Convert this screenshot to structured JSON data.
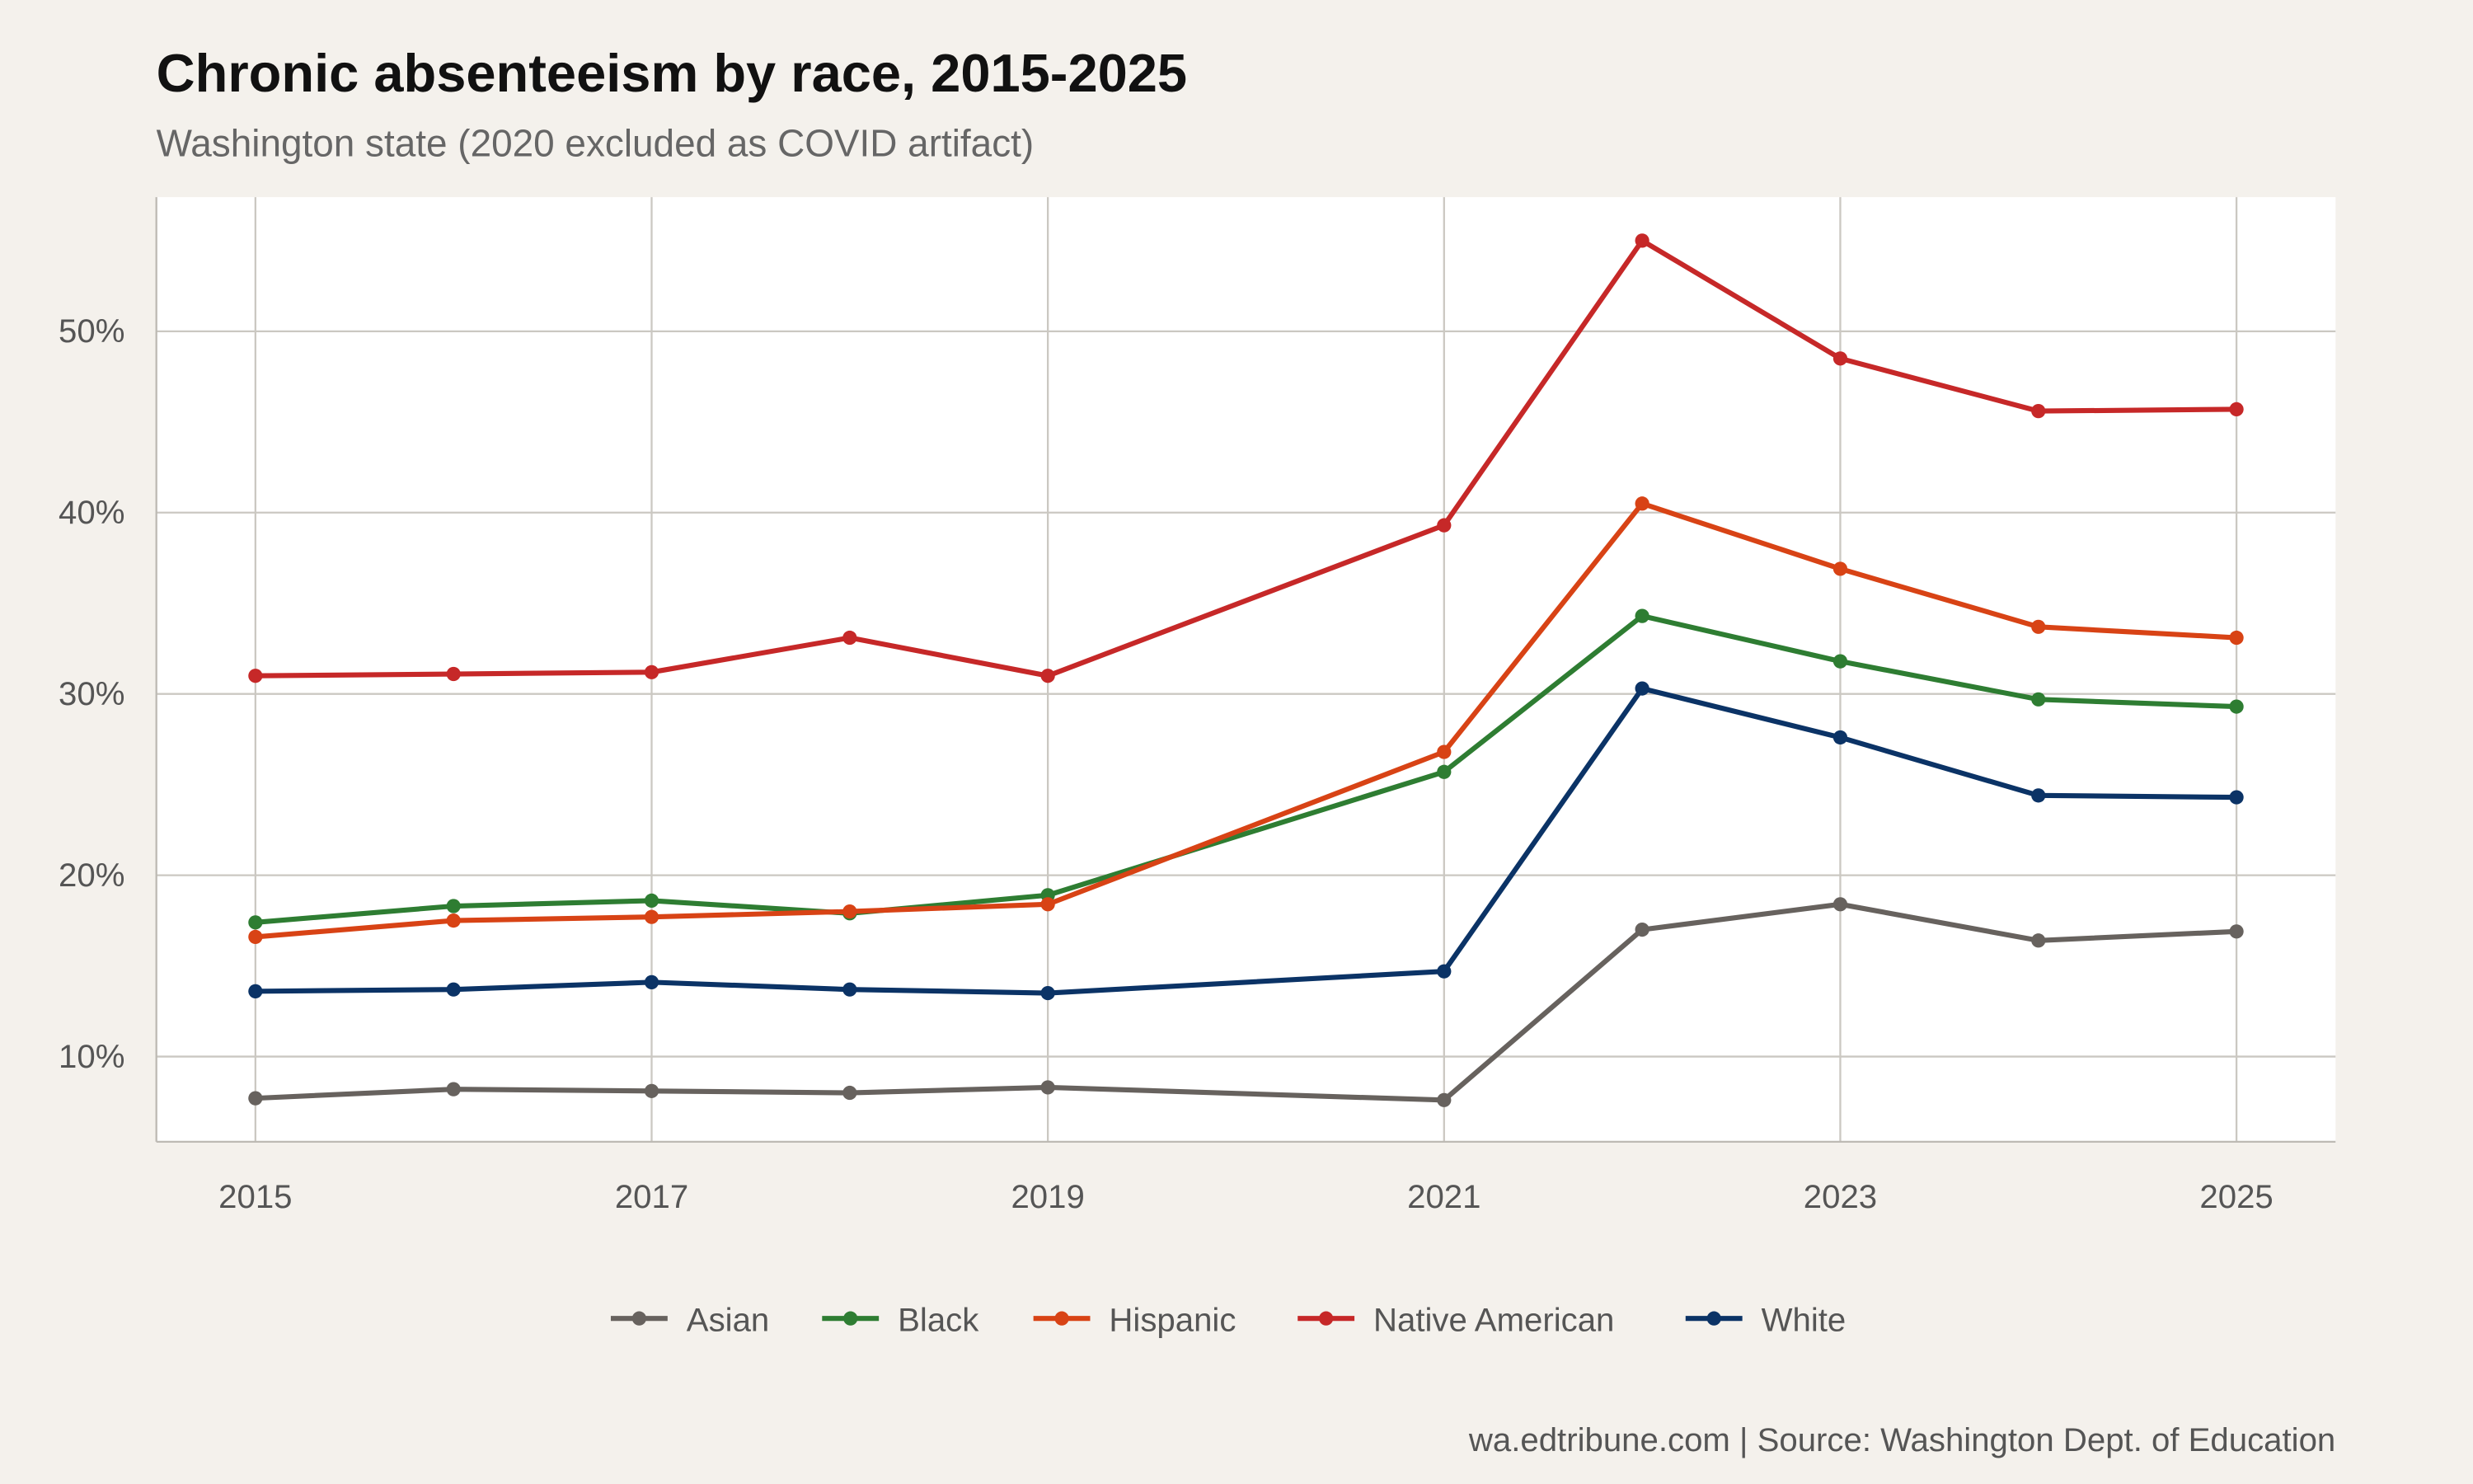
{
  "chart_data": {
    "type": "line",
    "title": "Chronic absenteeism by race, 2015-2025",
    "subtitle": "Washington state (2020 excluded as COVID artifact)",
    "caption": "wa.edtribune.com | Source: Washington Dept. of Education",
    "xlabel": "",
    "ylabel": "",
    "x": [
      2015,
      2016,
      2017,
      2018,
      2019,
      2021,
      2022,
      2023,
      2024,
      2025
    ],
    "xlim": [
      2014.5,
      2025.5
    ],
    "ylim": [
      5.3,
      57.4
    ],
    "x_ticks": [
      2015,
      2017,
      2019,
      2021,
      2023,
      2025
    ],
    "x_tick_labels": [
      "2015",
      "2017",
      "2019",
      "2021",
      "2023",
      "2025"
    ],
    "y_ticks": [
      10,
      20,
      30,
      40,
      50
    ],
    "y_tick_labels": [
      "10%",
      "20%",
      "30%",
      "40%",
      "50%"
    ],
    "grid": true,
    "legend_position": "bottom",
    "series": [
      {
        "name": "Asian",
        "color": "#67625e",
        "values": [
          7.7,
          8.2,
          8.1,
          8.0,
          8.3,
          7.6,
          17.0,
          18.4,
          16.4,
          16.9
        ]
      },
      {
        "name": "Black",
        "color": "#2e7d32",
        "values": [
          17.4,
          18.3,
          18.6,
          17.9,
          18.9,
          25.7,
          34.3,
          31.8,
          29.7,
          29.3
        ]
      },
      {
        "name": "Hispanic",
        "color": "#d84315",
        "values": [
          16.6,
          17.5,
          17.7,
          18.0,
          18.4,
          26.8,
          40.5,
          36.9,
          33.7,
          33.1
        ]
      },
      {
        "name": "Native American",
        "color": "#c62828",
        "values": [
          31.0,
          31.1,
          31.2,
          33.1,
          31.0,
          39.3,
          55.0,
          48.5,
          45.6,
          45.7
        ]
      },
      {
        "name": "White",
        "color": "#0b3366",
        "values": [
          13.6,
          13.7,
          14.1,
          13.7,
          13.5,
          14.7,
          30.3,
          27.6,
          24.4,
          24.3
        ]
      }
    ]
  }
}
